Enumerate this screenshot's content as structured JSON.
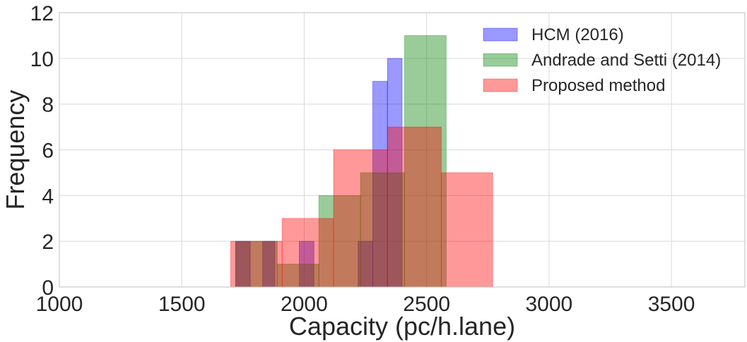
{
  "chart_data": {
    "type": "histogram",
    "title": "",
    "xlabel": "Capacity (pc/h.lane)",
    "ylabel": "Frequency",
    "xlim": [
      1000,
      3800
    ],
    "ylim": [
      0,
      12
    ],
    "xticks": [
      1000,
      1500,
      2000,
      2500,
      3000,
      3500
    ],
    "yticks": [
      0,
      2,
      4,
      6,
      8,
      10,
      12
    ],
    "grid": true,
    "legend_position": "top-right",
    "series": [
      {
        "name": "HCM (2016)",
        "color": "#0000ff",
        "opacity": 0.4,
        "bins": [
          {
            "x0": 1720,
            "x1": 1780,
            "value": 2
          },
          {
            "x0": 1780,
            "x1": 1830,
            "value": 0
          },
          {
            "x0": 1830,
            "x1": 1880,
            "value": 2
          },
          {
            "x0": 1880,
            "x1": 1930,
            "value": 0
          },
          {
            "x0": 1930,
            "x1": 1980,
            "value": 0
          },
          {
            "x0": 1980,
            "x1": 2040,
            "value": 2
          },
          {
            "x0": 2040,
            "x1": 2220,
            "value": 0
          },
          {
            "x0": 2220,
            "x1": 2280,
            "value": 2
          },
          {
            "x0": 2280,
            "x1": 2340,
            "value": 9
          },
          {
            "x0": 2340,
            "x1": 2400,
            "value": 10
          }
        ]
      },
      {
        "name": "Andrade and Setti (2014)",
        "color": "#008000",
        "opacity": 0.4,
        "bins": [
          {
            "x0": 1720,
            "x1": 1890,
            "value": 2
          },
          {
            "x0": 1890,
            "x1": 2060,
            "value": 1
          },
          {
            "x0": 2060,
            "x1": 2230,
            "value": 4
          },
          {
            "x0": 2230,
            "x1": 2410,
            "value": 5
          },
          {
            "x0": 2410,
            "x1": 2580,
            "value": 11
          }
        ]
      },
      {
        "name": "Proposed method",
        "color": "#ff0000",
        "opacity": 0.4,
        "bins": [
          {
            "x0": 1700,
            "x1": 1910,
            "value": 2
          },
          {
            "x0": 1910,
            "x1": 2120,
            "value": 3
          },
          {
            "x0": 2120,
            "x1": 2340,
            "value": 6
          },
          {
            "x0": 2340,
            "x1": 2560,
            "value": 7
          },
          {
            "x0": 2560,
            "x1": 2770,
            "value": 5
          }
        ]
      }
    ]
  }
}
